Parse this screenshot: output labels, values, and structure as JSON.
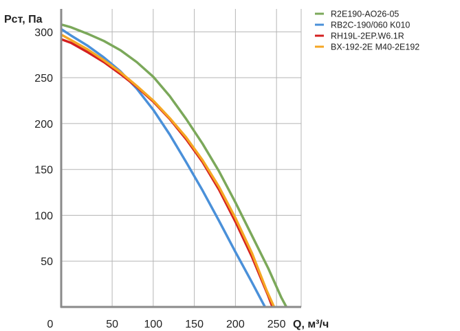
{
  "chart_data": {
    "type": "line",
    "ylabel": "Рст, Па",
    "xlabel": "Q, м³/ч",
    "x_origin_label": "0",
    "xlim": [
      -12,
      280
    ],
    "ylim": [
      0,
      325
    ],
    "x_ticks": [
      50,
      100,
      150,
      200,
      250
    ],
    "y_ticks": [
      50,
      100,
      150,
      200,
      250,
      300
    ],
    "grid": true,
    "legend_position": "top-right",
    "series": [
      {
        "name": "R2E190-AO26-05",
        "color": "#7ba85a",
        "points": [
          [
            -12,
            308
          ],
          [
            0,
            305
          ],
          [
            20,
            298
          ],
          [
            40,
            290
          ],
          [
            60,
            280
          ],
          [
            80,
            267
          ],
          [
            100,
            251
          ],
          [
            120,
            230
          ],
          [
            140,
            205
          ],
          [
            160,
            178
          ],
          [
            180,
            148
          ],
          [
            200,
            114
          ],
          [
            220,
            78
          ],
          [
            240,
            42
          ],
          [
            256,
            10
          ],
          [
            262,
            0
          ]
        ]
      },
      {
        "name": "RB2C-190/060 K010",
        "color": "#4a90d9",
        "points": [
          [
            -12,
            303
          ],
          [
            0,
            296
          ],
          [
            20,
            285
          ],
          [
            40,
            272
          ],
          [
            60,
            257
          ],
          [
            80,
            238
          ],
          [
            100,
            215
          ],
          [
            120,
            188
          ],
          [
            140,
            158
          ],
          [
            160,
            127
          ],
          [
            180,
            94
          ],
          [
            200,
            60
          ],
          [
            220,
            27
          ],
          [
            233,
            5
          ],
          [
            236,
            0
          ]
        ]
      },
      {
        "name": "RH19L-2EP.W6.1R",
        "color": "#d42020",
        "points": [
          [
            -12,
            292
          ],
          [
            0,
            288
          ],
          [
            20,
            278
          ],
          [
            40,
            267
          ],
          [
            60,
            254
          ],
          [
            80,
            240
          ],
          [
            100,
            224
          ],
          [
            120,
            205
          ],
          [
            140,
            183
          ],
          [
            160,
            158
          ],
          [
            180,
            128
          ],
          [
            200,
            93
          ],
          [
            220,
            55
          ],
          [
            240,
            12
          ],
          [
            245,
            0
          ]
        ]
      },
      {
        "name": "BX-192-2E M40-2E192",
        "color": "#f5a623",
        "points": [
          [
            -12,
            297
          ],
          [
            0,
            291
          ],
          [
            20,
            281
          ],
          [
            40,
            269
          ],
          [
            60,
            256
          ],
          [
            80,
            241
          ],
          [
            100,
            225
          ],
          [
            120,
            206
          ],
          [
            140,
            185
          ],
          [
            160,
            160
          ],
          [
            180,
            131
          ],
          [
            200,
            97
          ],
          [
            220,
            59
          ],
          [
            238,
            18
          ],
          [
            247,
            0
          ]
        ]
      }
    ]
  }
}
